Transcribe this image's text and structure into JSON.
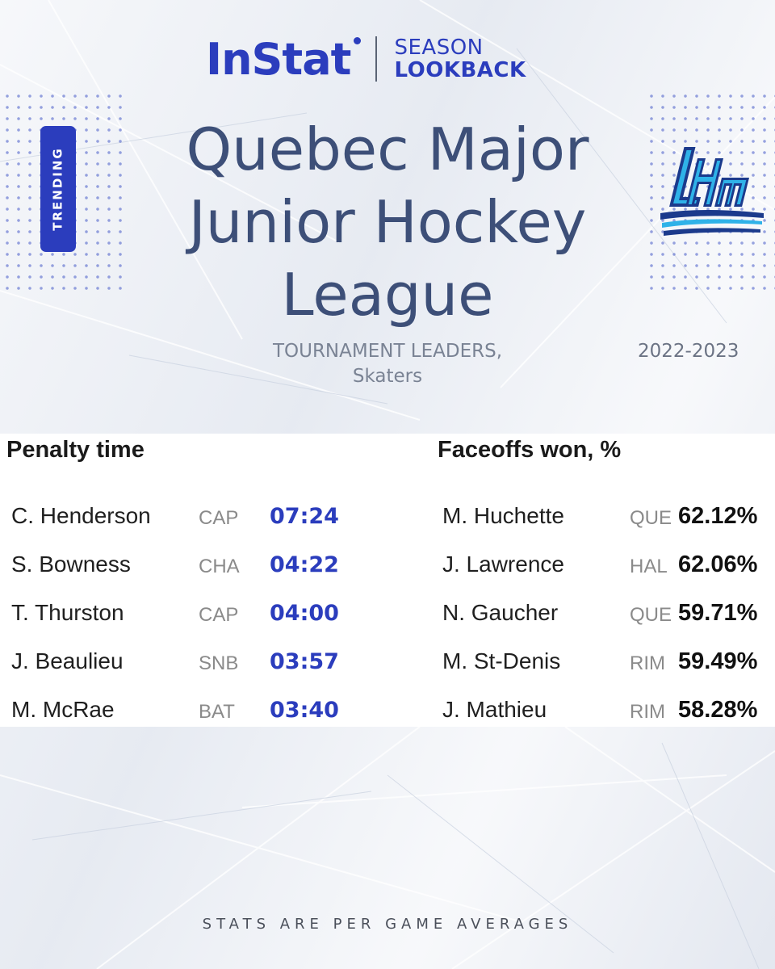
{
  "header": {
    "brand": "InStat",
    "brand_sub_line1": "SEASON",
    "brand_sub_line2": "LOOKBACK",
    "badge": "TRENDING",
    "league_title_lines": [
      "Quebec Major",
      "Junior Hockey",
      "League"
    ],
    "logo_icon": "lhjmq-logo-icon",
    "subtitle_line1": "TOURNAMENT LEADERS,",
    "subtitle_line2": "Skaters",
    "season": "2022-2023"
  },
  "colors": {
    "accent": "#2b3dbd",
    "title": "#3d4f78",
    "logo_light": "#2fb2e8",
    "logo_dark": "#1b3a8c"
  },
  "penalty": {
    "title": "Penalty time",
    "rows": [
      {
        "name": "C. Henderson",
        "team": "CAP",
        "value": "07:24"
      },
      {
        "name": "S. Bowness",
        "team": "CHA",
        "value": "04:22"
      },
      {
        "name": "T. Thurston",
        "team": "CAP",
        "value": "04:00"
      },
      {
        "name": "J. Beaulieu",
        "team": "SNB",
        "value": "03:57"
      },
      {
        "name": "M. McRae",
        "team": "BAT",
        "value": "03:40"
      }
    ]
  },
  "faceoffs": {
    "title": "Faceoffs won, %",
    "rows": [
      {
        "name": "M. Huchette",
        "team": "QUE",
        "value": "62.12%"
      },
      {
        "name": "J. Lawrence",
        "team": "HAL",
        "value": "62.06%"
      },
      {
        "name": "N. Gaucher",
        "team": "QUE",
        "value": "59.71%"
      },
      {
        "name": "M. St-Denis",
        "team": "RIM",
        "value": "59.49%"
      },
      {
        "name": "J. Mathieu",
        "team": "RIM",
        "value": "58.28%"
      }
    ]
  },
  "footnote": "STATS ARE PER GAME AVERAGES"
}
